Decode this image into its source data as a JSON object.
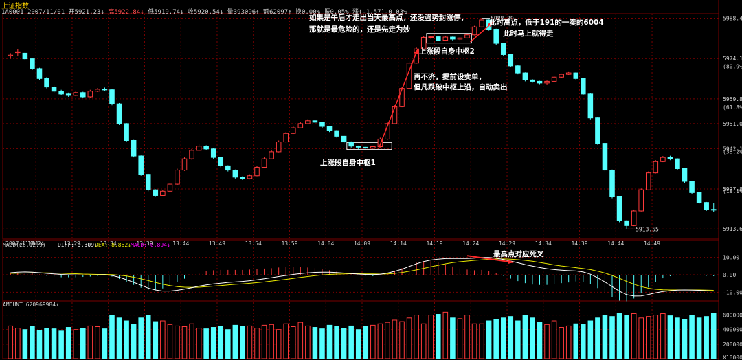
{
  "header": {
    "title": "上证指数",
    "quote": {
      "code": "1A0001",
      "date": "2007/11/01",
      "open": "开5921.23↓",
      "high": "高5922.84↓",
      "low": "低5919.74↓",
      "close": "收5920.54↓",
      "volume": "量393096↑",
      "amount": "额62097↑",
      "turnover": "换0.00%",
      "amplitude": "振0.05%",
      "change": "涨(-1.57)-0.03%"
    }
  },
  "colors": {
    "up": "#ff3b3b",
    "down": "#54ffff",
    "grid": "#7a0000",
    "dif": "#ffffff",
    "dea": "#e8e800",
    "macd_label": "#ff00ff",
    "annotation": "#ff2a2a"
  },
  "chart_data": [
    {
      "type": "candlestick",
      "name": "price",
      "y_axis": {
        "ticks": [
          "5988.4",
          "5974.1",
          "5959.8",
          "5951.0",
          "5942.1",
          "5927.8",
          "5913.6"
        ],
        "pct_labels": [
          "(80.9%)",
          "(61.8%)",
          "(38.2%)",
          "(19.1%)"
        ],
        "ylim": [
          5910,
          5990
        ]
      },
      "x_axis": {
        "labels": [
          "2007/11/01",
          "13:24",
          "13:29",
          "13:34",
          "13:39",
          "13:44",
          "13:49",
          "13:54",
          "13:59",
          "14:04",
          "14:09",
          "14:14",
          "14:19",
          "14:24",
          "14:29",
          "14:34",
          "14:39",
          "14:44",
          "14:49"
        ]
      },
      "annotations": {
        "high_label": "5988.39",
        "low_label": "5913.55",
        "note_top_left": "如果是午后才走出当天最高点，还没强势封涨停，那就是最危险的，还是先走为妙",
        "note_top_right_1": "此时高点，低于191的一卖的6004",
        "note_top_right_2": "此时马上就得走",
        "note_mid_1": "再不济，提前设卖单，",
        "note_mid_2": "但凡跌破中枢上沿，自动卖出",
        "zone1_label": "上涨段自身中枢1",
        "zone2_label": "上涨段自身中枢2"
      },
      "candles": [
        {
          "o": 5975.0,
          "c": 5975.3,
          "h": 5976.0,
          "l": 5974.0
        },
        {
          "o": 5976.2,
          "c": 5976.5,
          "h": 5977.5,
          "l": 5975.0
        },
        {
          "o": 5976.0,
          "c": 5974.0,
          "h": 5976.2,
          "l": 5973.5
        },
        {
          "o": 5974.0,
          "c": 5970.5,
          "h": 5974.2,
          "l": 5970.0
        },
        {
          "o": 5970.5,
          "c": 5967.0,
          "h": 5970.8,
          "l": 5966.5
        },
        {
          "o": 5967.0,
          "c": 5964.0,
          "h": 5967.5,
          "l": 5963.5
        },
        {
          "o": 5964.0,
          "c": 5962.5,
          "h": 5964.5,
          "l": 5962.0
        },
        {
          "o": 5962.5,
          "c": 5961.5,
          "h": 5963.0,
          "l": 5961.0
        },
        {
          "o": 5961.5,
          "c": 5961.0,
          "h": 5962.0,
          "l": 5960.5
        },
        {
          "o": 5961.0,
          "c": 5962.0,
          "h": 5962.4,
          "l": 5960.7
        },
        {
          "o": 5962.0,
          "c": 5960.5,
          "h": 5962.3,
          "l": 5960.0
        },
        {
          "o": 5960.5,
          "c": 5962.5,
          "h": 5963.0,
          "l": 5960.2
        },
        {
          "o": 5962.5,
          "c": 5963.2,
          "h": 5963.6,
          "l": 5962.2
        },
        {
          "o": 5963.2,
          "c": 5963.0,
          "h": 5963.8,
          "l": 5962.6
        },
        {
          "o": 5963.0,
          "c": 5958.0,
          "h": 5963.2,
          "l": 5957.5
        },
        {
          "o": 5958.0,
          "c": 5951.0,
          "h": 5958.3,
          "l": 5950.5
        },
        {
          "o": 5951.0,
          "c": 5945.0,
          "h": 5951.2,
          "l": 5944.5
        },
        {
          "o": 5945.0,
          "c": 5939.5,
          "h": 5945.2,
          "l": 5939.0
        },
        {
          "o": 5939.5,
          "c": 5933.0,
          "h": 5939.7,
          "l": 5932.5
        },
        {
          "o": 5933.0,
          "c": 5927.5,
          "h": 5933.2,
          "l": 5927.0
        },
        {
          "o": 5927.5,
          "c": 5925.5,
          "h": 5927.7,
          "l": 5925.0
        },
        {
          "o": 5925.5,
          "c": 5927.0,
          "h": 5927.4,
          "l": 5925.2
        },
        {
          "o": 5927.0,
          "c": 5929.5,
          "h": 5929.8,
          "l": 5926.6
        },
        {
          "o": 5929.5,
          "c": 5934.5,
          "h": 5935.0,
          "l": 5929.2
        },
        {
          "o": 5934.5,
          "c": 5938.5,
          "h": 5939.0,
          "l": 5934.2
        },
        {
          "o": 5938.5,
          "c": 5941.5,
          "h": 5942.0,
          "l": 5938.2
        },
        {
          "o": 5941.5,
          "c": 5943.0,
          "h": 5943.6,
          "l": 5941.3
        },
        {
          "o": 5943.0,
          "c": 5942.0,
          "h": 5943.3,
          "l": 5941.7
        },
        {
          "o": 5942.0,
          "c": 5939.0,
          "h": 5942.2,
          "l": 5938.5
        },
        {
          "o": 5939.0,
          "c": 5936.0,
          "h": 5939.2,
          "l": 5935.5
        },
        {
          "o": 5936.0,
          "c": 5934.5,
          "h": 5936.2,
          "l": 5934.0
        },
        {
          "o": 5934.5,
          "c": 5932.0,
          "h": 5934.7,
          "l": 5931.5
        },
        {
          "o": 5932.0,
          "c": 5931.5,
          "h": 5932.3,
          "l": 5931.0
        },
        {
          "o": 5931.5,
          "c": 5932.5,
          "h": 5933.0,
          "l": 5931.2
        },
        {
          "o": 5932.5,
          "c": 5935.5,
          "h": 5936.0,
          "l": 5932.3
        },
        {
          "o": 5935.5,
          "c": 5938.5,
          "h": 5939.0,
          "l": 5935.3
        },
        {
          "o": 5938.5,
          "c": 5941.0,
          "h": 5941.5,
          "l": 5938.3
        },
        {
          "o": 5941.0,
          "c": 5944.5,
          "h": 5945.0,
          "l": 5940.8
        },
        {
          "o": 5944.5,
          "c": 5947.5,
          "h": 5948.0,
          "l": 5944.3
        },
        {
          "o": 5947.5,
          "c": 5949.5,
          "h": 5950.0,
          "l": 5947.3
        },
        {
          "o": 5949.5,
          "c": 5951.0,
          "h": 5951.5,
          "l": 5949.3
        },
        {
          "o": 5951.0,
          "c": 5952.0,
          "h": 5952.5,
          "l": 5950.8
        },
        {
          "o": 5952.0,
          "c": 5951.5,
          "h": 5952.2,
          "l": 5951.2
        },
        {
          "o": 5951.5,
          "c": 5950.0,
          "h": 5951.7,
          "l": 5949.5
        },
        {
          "o": 5950.0,
          "c": 5948.5,
          "h": 5950.2,
          "l": 5948.0
        },
        {
          "o": 5948.5,
          "c": 5946.5,
          "h": 5948.7,
          "l": 5946.0
        },
        {
          "o": 5946.5,
          "c": 5944.5,
          "h": 5946.7,
          "l": 5944.0
        },
        {
          "o": 5944.5,
          "c": 5943.0,
          "h": 5944.7,
          "l": 5942.5
        },
        {
          "o": 5943.0,
          "c": 5942.6,
          "h": 5943.2,
          "l": 5941.8
        },
        {
          "o": 5942.6,
          "c": 5942.3,
          "h": 5942.8,
          "l": 5941.9
        },
        {
          "o": 5942.3,
          "c": 5942.8,
          "h": 5943.0,
          "l": 5942.0
        },
        {
          "o": 5942.8,
          "c": 5945.5,
          "h": 5946.0,
          "l": 5942.5
        },
        {
          "o": 5945.5,
          "c": 5951.0,
          "h": 5951.5,
          "l": 5945.2
        },
        {
          "o": 5951.0,
          "c": 5957.0,
          "h": 5957.5,
          "l": 5950.8
        },
        {
          "o": 5957.0,
          "c": 5963.5,
          "h": 5964.0,
          "l": 5956.8
        },
        {
          "o": 5963.5,
          "c": 5972.5,
          "h": 5973.0,
          "l": 5963.3
        },
        {
          "o": 5972.5,
          "c": 5977.5,
          "h": 5978.0,
          "l": 5972.3
        },
        {
          "o": 5977.5,
          "c": 5981.6,
          "h": 5982.0,
          "l": 5977.2
        },
        {
          "o": 5981.6,
          "c": 5981.8,
          "h": 5982.1,
          "l": 5981.0
        },
        {
          "o": 5981.8,
          "c": 5980.6,
          "h": 5982.0,
          "l": 5980.3
        },
        {
          "o": 5980.6,
          "c": 5981.7,
          "h": 5982.0,
          "l": 5980.4
        },
        {
          "o": 5981.7,
          "c": 5981.0,
          "h": 5981.9,
          "l": 5980.5
        },
        {
          "o": 5981.0,
          "c": 5981.4,
          "h": 5981.7,
          "l": 5980.4
        },
        {
          "o": 5981.4,
          "c": 5982.5,
          "h": 5982.9,
          "l": 5981.2
        },
        {
          "o": 5982.5,
          "c": 5985.3,
          "h": 5985.7,
          "l": 5982.3
        },
        {
          "o": 5985.3,
          "c": 5987.8,
          "h": 5988.39,
          "l": 5985.1
        },
        {
          "o": 5987.8,
          "c": 5984.5,
          "h": 5988.0,
          "l": 5984.0
        },
        {
          "o": 5984.5,
          "c": 5979.5,
          "h": 5984.7,
          "l": 5979.0
        },
        {
          "o": 5979.5,
          "c": 5975.5,
          "h": 5979.7,
          "l": 5975.0
        },
        {
          "o": 5975.5,
          "c": 5971.5,
          "h": 5975.7,
          "l": 5971.0
        },
        {
          "o": 5971.5,
          "c": 5969.0,
          "h": 5971.7,
          "l": 5968.5
        },
        {
          "o": 5969.0,
          "c": 5966.5,
          "h": 5969.2,
          "l": 5966.0
        },
        {
          "o": 5966.5,
          "c": 5966.0,
          "h": 5966.8,
          "l": 5965.5
        },
        {
          "o": 5966.0,
          "c": 5965.4,
          "h": 5966.2,
          "l": 5965.0
        },
        {
          "o": 5965.4,
          "c": 5966.0,
          "h": 5966.3,
          "l": 5964.8
        },
        {
          "o": 5966.0,
          "c": 5967.5,
          "h": 5967.8,
          "l": 5965.8
        },
        {
          "o": 5967.5,
          "c": 5968.5,
          "h": 5968.8,
          "l": 5967.3
        },
        {
          "o": 5968.5,
          "c": 5969.0,
          "h": 5969.3,
          "l": 5968.3
        },
        {
          "o": 5969.0,
          "c": 5967.0,
          "h": 5969.2,
          "l": 5966.5
        },
        {
          "o": 5967.0,
          "c": 5961.5,
          "h": 5967.2,
          "l": 5961.0
        },
        {
          "o": 5961.5,
          "c": 5953.0,
          "h": 5961.7,
          "l": 5952.5
        },
        {
          "o": 5953.0,
          "c": 5944.0,
          "h": 5953.2,
          "l": 5943.5
        },
        {
          "o": 5944.0,
          "c": 5934.5,
          "h": 5944.2,
          "l": 5934.0
        },
        {
          "o": 5934.5,
          "c": 5925.0,
          "h": 5934.7,
          "l": 5924.5
        },
        {
          "o": 5925.0,
          "c": 5916.5,
          "h": 5925.2,
          "l": 5916.0
        },
        {
          "o": 5916.5,
          "c": 5914.8,
          "h": 5916.7,
          "l": 5913.55
        },
        {
          "o": 5914.8,
          "c": 5920.0,
          "h": 5920.5,
          "l": 5914.6
        },
        {
          "o": 5920.0,
          "c": 5927.5,
          "h": 5928.0,
          "l": 5919.8
        },
        {
          "o": 5927.5,
          "c": 5933.5,
          "h": 5934.0,
          "l": 5927.3
        },
        {
          "o": 5933.5,
          "c": 5937.5,
          "h": 5938.0,
          "l": 5933.3
        },
        {
          "o": 5937.5,
          "c": 5939.0,
          "h": 5939.5,
          "l": 5937.3
        },
        {
          "o": 5939.0,
          "c": 5938.5,
          "h": 5939.6,
          "l": 5938.0
        },
        {
          "o": 5938.5,
          "c": 5935.0,
          "h": 5938.7,
          "l": 5934.5
        },
        {
          "o": 5935.0,
          "c": 5930.5,
          "h": 5935.2,
          "l": 5930.0
        },
        {
          "o": 5930.5,
          "c": 5926.5,
          "h": 5930.7,
          "l": 5926.0
        },
        {
          "o": 5926.5,
          "c": 5923.0,
          "h": 5926.7,
          "l": 5922.5
        },
        {
          "o": 5923.0,
          "c": 5920.5,
          "h": 5923.2,
          "l": 5920.0
        },
        {
          "o": 5920.54,
          "c": 5920.5,
          "h": 5922.84,
          "l": 5919.74
        }
      ],
      "zones": [
        {
          "start": 47,
          "end": 52,
          "low": 5941.8,
          "high": 5944.3,
          "label_key": "zone1_label"
        },
        {
          "start": 58,
          "end": 63,
          "low": 5979.6,
          "high": 5983.0,
          "label_key": "zone2_label"
        }
      ]
    },
    {
      "type": "macd",
      "label": "MACD(26,12,9)",
      "dif_label": "DIFF:-9.309↓",
      "dea_label": "DEA:-8.862↓",
      "macd_label": "MACD:-0.894↓",
      "ticks": [
        "10.00",
        "0.00",
        "-10.00"
      ],
      "ylim": [
        -15,
        15
      ],
      "annotation": "最高点对应死叉",
      "dif": [
        1.2,
        1.5,
        1.6,
        1.5,
        1.2,
        0.8,
        0.5,
        0.2,
        0,
        -0.1,
        -0.2,
        -0.2,
        -0.1,
        0,
        -0.4,
        -1.4,
        -2.8,
        -4.3,
        -6,
        -7.6,
        -8.7,
        -9.3,
        -9.3,
        -8.9,
        -8.2,
        -7.4,
        -6.5,
        -5.8,
        -5.2,
        -4.8,
        -4.4,
        -4.1,
        -3.8,
        -3.4,
        -2.9,
        -2.3,
        -1.7,
        -1,
        -0.4,
        0.2,
        0.7,
        1.1,
        1.4,
        1.5,
        1.5,
        1.3,
        1,
        0.7,
        0.4,
        0.2,
        0.1,
        0.3,
        1,
        2,
        3.2,
        4.8,
        6.3,
        7.6,
        8.5,
        9,
        9.3,
        9.4,
        9.4,
        9.4,
        9.6,
        10,
        10,
        9.6,
        8.8,
        7.9,
        6.9,
        5.9,
        5,
        4.2,
        3.5,
        3,
        2.7,
        2.4,
        2.2,
        1.6,
        0.3,
        -1.7,
        -4.1,
        -6.8,
        -9.4,
        -11.4,
        -12.2,
        -12.1,
        -11.3,
        -10.4,
        -9.6,
        -9.1,
        -8.8,
        -8.7,
        -8.8,
        -8.9,
        -9.1,
        -9.3
      ],
      "dea": [
        0.8,
        0.9,
        1,
        1.1,
        1.1,
        1.1,
        1,
        0.9,
        0.7,
        0.6,
        0.4,
        0.3,
        0.2,
        0.2,
        0.1,
        -0.2,
        -0.7,
        -1.4,
        -2.3,
        -3.3,
        -4.4,
        -5.4,
        -6.2,
        -6.8,
        -7.1,
        -7.2,
        -7.1,
        -6.8,
        -6.5,
        -6.2,
        -5.8,
        -5.5,
        -5.2,
        -4.9,
        -4.5,
        -4.1,
        -3.6,
        -3.1,
        -2.6,
        -2.1,
        -1.5,
        -1,
        -0.5,
        -0.1,
        0.2,
        0.4,
        0.5,
        0.6,
        0.6,
        0.5,
        0.5,
        0.4,
        0.5,
        0.8,
        1.3,
        2,
        2.8,
        3.7,
        4.6,
        5.5,
        6.3,
        7,
        7.5,
        7.9,
        8.3,
        8.6,
        8.9,
        9.1,
        9.1,
        9,
        8.7,
        8.3,
        7.8,
        7.1,
        6.4,
        5.7,
        5.1,
        4.6,
        4.1,
        3.6,
        3,
        2.1,
        1,
        -0.4,
        -2,
        -3.8,
        -5.4,
        -6.8,
        -7.7,
        -8.3,
        -8.6,
        -8.7,
        -8.7,
        -8.7,
        -8.7,
        -8.7,
        -8.8,
        -8.9
      ],
      "cross_arrow": {
        "from": 63,
        "to": 69
      }
    },
    {
      "type": "bar",
      "label": "AMOUNT 620969984↑",
      "ticks": [
        "600000",
        "400000",
        "200000",
        "X10000"
      ],
      "ylim": [
        0,
        700000
      ],
      "values": [
        450000,
        420000,
        400000,
        440000,
        390000,
        420000,
        410000,
        380000,
        430000,
        400000,
        420000,
        450000,
        440000,
        410000,
        600000,
        560000,
        520000,
        470000,
        560000,
        600000,
        510000,
        520000,
        470000,
        450000,
        440000,
        480000,
        420000,
        410000,
        430000,
        440000,
        400000,
        460000,
        440000,
        450000,
        420000,
        460000,
        470000,
        400000,
        480000,
        440000,
        500000,
        450000,
        430000,
        410000,
        460000,
        440000,
        420000,
        450000,
        400000,
        440000,
        460000,
        480000,
        500000,
        530000,
        510000,
        560000,
        600000,
        480000,
        600000,
        610000,
        640000,
        560000,
        550000,
        600000,
        480000,
        480000,
        520000,
        540000,
        560000,
        580000,
        520000,
        600000,
        560000,
        500000,
        470000,
        520000,
        430000,
        450000,
        480000,
        470000,
        520000,
        560000,
        600000,
        580000,
        620000,
        600000,
        620000,
        560000,
        580000,
        600000,
        620000,
        590000,
        560000,
        540000,
        600000,
        560000,
        580000,
        620969
      ]
    }
  ]
}
